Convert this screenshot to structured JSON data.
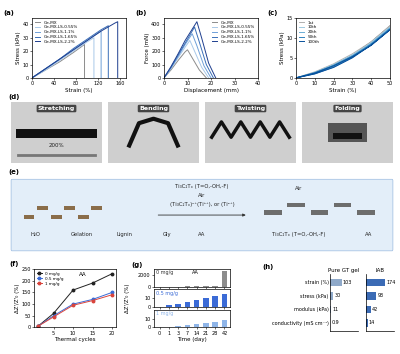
{
  "chart_data": [
    {
      "type": "line",
      "title": "(a)",
      "x_label": "Strain (%)",
      "y_label": "Stress (kPa)",
      "xlim": [
        0,
        170
      ],
      "xticks": [
        0,
        40,
        80,
        120,
        160
      ],
      "ylim": [
        0,
        45
      ],
      "yticks": [
        0,
        10,
        20,
        30,
        40
      ],
      "legend": "upper left",
      "grid": false,
      "series": [
        {
          "name": "Ge-MX",
          "color": "#8c8c8c",
          "x": [
            0,
            25,
            50,
            75,
            95,
            95
          ],
          "values": [
            0,
            6,
            12,
            19,
            25,
            0
          ]
        },
        {
          "name": "Ge-MX-LS-0.55%",
          "color": "#a9c8e8",
          "x": [
            0,
            25,
            50,
            75,
            100,
            112,
            112
          ],
          "values": [
            0,
            6,
            13,
            20,
            27,
            30,
            0
          ]
        },
        {
          "name": "Ge-MX-LS-1.1%",
          "color": "#6fa0d8",
          "x": [
            0,
            25,
            50,
            75,
            100,
            125,
            125
          ],
          "values": [
            0,
            7,
            14,
            21,
            28,
            35,
            0
          ]
        },
        {
          "name": "Ge-MX-LS-1.65%",
          "color": "#3a6fb8",
          "x": [
            0,
            25,
            50,
            75,
            100,
            125,
            138,
            138
          ],
          "values": [
            0,
            7,
            14,
            22,
            29,
            36,
            39,
            0
          ]
        },
        {
          "name": "Ge-MX-LS-2.2%",
          "color": "#1f3f8f",
          "x": [
            0,
            25,
            50,
            75,
            100,
            125,
            150,
            155,
            155
          ],
          "values": [
            0,
            7,
            14,
            21,
            28,
            35,
            41,
            42,
            0
          ]
        }
      ]
    },
    {
      "type": "line",
      "title": "(b)",
      "x_label": "Displacement (mm)",
      "y_label": "Force (mN)",
      "xlim": [
        0,
        40
      ],
      "xticks": [
        0,
        10,
        20,
        30,
        40
      ],
      "ylim": [
        0,
        450
      ],
      "yticks": [
        0,
        100,
        200,
        300,
        400
      ],
      "legend": "upper right",
      "grid": false,
      "series": [
        {
          "name": "Ge-MX",
          "color": "#8c8c8c",
          "x": [
            0,
            3,
            6,
            9,
            10,
            12,
            15,
            18
          ],
          "values": [
            0,
            60,
            130,
            195,
            210,
            150,
            60,
            0
          ]
        },
        {
          "name": "Ge-MX-LS-0.55%",
          "color": "#a9c8e8",
          "x": [
            0,
            3,
            6,
            9,
            11,
            13,
            16,
            19
          ],
          "values": [
            0,
            70,
            150,
            230,
            280,
            200,
            80,
            0
          ]
        },
        {
          "name": "Ge-MX-LS-1.1%",
          "color": "#6fa0d8",
          "x": [
            0,
            3,
            6,
            9,
            12,
            14,
            17,
            20
          ],
          "values": [
            0,
            75,
            160,
            250,
            330,
            240,
            90,
            0
          ]
        },
        {
          "name": "Ge-MX-LS-1.65%",
          "color": "#3a6fb8",
          "x": [
            0,
            3,
            6,
            9,
            13,
            15,
            18,
            21
          ],
          "values": [
            0,
            80,
            170,
            260,
            380,
            270,
            100,
            0
          ]
        },
        {
          "name": "Ge-MX-LS-2.2%",
          "color": "#1f3f8f",
          "x": [
            0,
            3,
            6,
            9,
            14,
            16,
            19,
            22
          ],
          "values": [
            0,
            85,
            180,
            280,
            420,
            300,
            110,
            0
          ]
        }
      ]
    },
    {
      "type": "line",
      "title": "(c)",
      "x_label": "Strain (%)",
      "y_label": "Stress (kPa)",
      "xlim": [
        0,
        50
      ],
      "xticks": [
        0,
        10,
        20,
        30,
        40,
        50
      ],
      "ylim": [
        0,
        15
      ],
      "yticks": [
        0,
        5,
        10,
        15
      ],
      "legend": "upper left",
      "grid": false,
      "x": [
        0,
        10,
        20,
        30,
        40,
        50,
        40,
        30,
        20,
        10,
        0
      ],
      "series": [
        {
          "name": "1st",
          "color": "#b0b0b0",
          "values": [
            0,
            1.5,
            3.5,
            6,
            9,
            13,
            9,
            5.5,
            3,
            1.2,
            0
          ]
        },
        {
          "name": "10th",
          "color": "#9ecae1",
          "values": [
            0,
            1.4,
            3.3,
            5.7,
            8.7,
            12.6,
            8.8,
            5.3,
            2.9,
            1.1,
            0
          ]
        },
        {
          "name": "20th",
          "color": "#6baed6",
          "values": [
            0,
            1.3,
            3.2,
            5.6,
            8.5,
            12.4,
            8.6,
            5.2,
            2.8,
            1.1,
            0
          ]
        },
        {
          "name": "50th",
          "color": "#3182bd",
          "values": [
            0,
            1.3,
            3.1,
            5.4,
            8.3,
            12.2,
            8.4,
            5.1,
            2.7,
            1.0,
            0
          ]
        },
        {
          "name": "100th",
          "color": "#08519c",
          "values": [
            0,
            1.2,
            3.0,
            5.3,
            8.1,
            12.0,
            8.2,
            5.0,
            2.6,
            1.0,
            0
          ]
        }
      ]
    },
    {
      "type": "line",
      "title": "(f)",
      "x_label": "Thermal cycles",
      "y_label": "ΔZ'/Z'₀ (%)",
      "xlim": [
        0,
        21
      ],
      "xticks": [
        5,
        10,
        15,
        20
      ],
      "ylim": [
        0,
        250
      ],
      "yticks": [
        0,
        50,
        100,
        150,
        200,
        250
      ],
      "legend": "upper left",
      "grid": false,
      "marker": "o",
      "annotation": "AA",
      "x": [
        1,
        5,
        10,
        15,
        20
      ],
      "series": [
        {
          "name": "0 mg/g",
          "color": "#222222",
          "values": [
            5,
            60,
            160,
            190,
            230
          ]
        },
        {
          "name": "0.5 mg/g",
          "color": "#3b6bd6",
          "values": [
            5,
            50,
            100,
            120,
            150
          ]
        },
        {
          "name": "1 mg/g",
          "color": "#d9453d",
          "values": [
            5,
            45,
            95,
            115,
            140
          ]
        }
      ]
    },
    {
      "type": "bar",
      "title": "(g)",
      "x_label": "Time (day)",
      "y_label": "ΔZ'/Z'₀ (%)",
      "annotation": "AA",
      "categories": [
        "0",
        "1",
        "3",
        "7",
        "14",
        "21",
        "28",
        "42"
      ],
      "grid": false,
      "series": [
        {
          "name": "0 mg/g",
          "color": "#8c8c8c",
          "values": [
            0,
            10,
            20,
            40,
            60,
            80,
            120,
            2600
          ],
          "ylim": [
            0,
            3000
          ],
          "yticks": [
            0,
            2000
          ]
        },
        {
          "name": "0.5 mg/g",
          "color": "#3b6bd6",
          "values": [
            0,
            2,
            4,
            6,
            8,
            10,
            12,
            15
          ],
          "ylim": [
            0,
            20
          ],
          "yticks": [
            0,
            10
          ]
        },
        {
          "name": "1 mg/g",
          "color": "#8fb5e8",
          "values": [
            0,
            1,
            2,
            3,
            4,
            5,
            6,
            8
          ],
          "ylim": [
            0,
            20
          ],
          "yticks": [
            0,
            10
          ]
        }
      ]
    },
    {
      "type": "bar",
      "orientation": "horizontal",
      "title": "(h)",
      "data_labels": true,
      "tick_labels": false,
      "categories": [
        "strain (%)",
        "stress (kPa)",
        "modulus (kPa)",
        "conductivity (mS cm⁻¹)"
      ],
      "xlim": [
        0,
        250
      ],
      "series": [
        {
          "name": "Pure GT gel",
          "color": "#8fa9c9",
          "values": [
            103,
            30,
            11,
            0.9
          ]
        },
        {
          "name": "IAB",
          "color": "#3b6bb5",
          "values": [
            174,
            93,
            42,
            14
          ]
        }
      ]
    }
  ],
  "photos": {
    "title": "(d)",
    "labels": [
      "Stretching",
      "Bending",
      "Twisting",
      "Folding"
    ],
    "annotation": "200%"
  },
  "schematic": {
    "title": "(e)",
    "texts": [
      "Ti₃C₂Tₓ (T=O,-OH,-F)",
      "Air",
      "(Ti₃C₂Tₓ)ⁿ⁺(Ti³⁺), or (Ti²⁺)",
      "H₂O",
      "Gelation",
      "Lignin",
      "Gly",
      "AA",
      "Ti₃C₂Tₓ (T=O,-OH,-F)",
      "Air",
      "AA"
    ]
  }
}
